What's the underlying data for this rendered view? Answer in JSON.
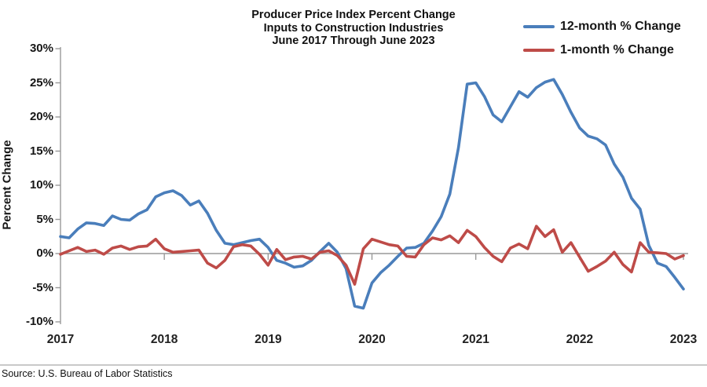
{
  "title": {
    "line1": "Producer Price Index Percent Change",
    "line2": "Inputs to Construction Industries",
    "line3": "June 2017 Through June 2023"
  },
  "source": "Source: U.S. Bureau of Labor Statistics",
  "chart_data": {
    "type": "line",
    "title": "Producer Price Index Percent Change Inputs to Construction Industries June 2017 Through June 2023",
    "xlabel": "",
    "ylabel": "Percent Change",
    "x_unit": "month",
    "x_start": "June 2017",
    "x_end": "June 2023",
    "n_points": 73,
    "ylim": [
      -10,
      30
    ],
    "grid": "zero-line-only",
    "legend_position": "top-right",
    "axis_color": "#999999",
    "y_ticks": [
      {
        "label": "30%",
        "value": 30
      },
      {
        "label": "25%",
        "value": 25
      },
      {
        "label": "20%",
        "value": 20
      },
      {
        "label": "15%",
        "value": 15
      },
      {
        "label": "10%",
        "value": 10
      },
      {
        "label": "5%",
        "value": 5
      },
      {
        "label": "0%",
        "value": 0
      },
      {
        "label": "-5%",
        "value": -5
      },
      {
        "label": "-10%",
        "value": -10
      }
    ],
    "x_ticks": [
      {
        "label": "2017",
        "month_index": 0
      },
      {
        "label": "2018",
        "month_index": 12
      },
      {
        "label": "2019",
        "month_index": 24
      },
      {
        "label": "2020",
        "month_index": 36
      },
      {
        "label": "2021",
        "month_index": 48
      },
      {
        "label": "2022",
        "month_index": 60
      },
      {
        "label": "2023",
        "month_index": 72
      }
    ],
    "series": [
      {
        "name": "12-month % Change",
        "color": "#4A7EBB",
        "values": [
          2.5,
          2.3,
          3.6,
          4.5,
          4.4,
          4.1,
          5.5,
          5.0,
          4.9,
          5.8,
          6.4,
          8.3,
          8.9,
          9.2,
          8.5,
          7.1,
          7.7,
          5.9,
          3.4,
          1.5,
          1.3,
          1.6,
          1.9,
          2.1,
          0.9,
          -1.0,
          -1.4,
          -2.0,
          -1.8,
          -1.0,
          0.3,
          1.5,
          0.2,
          -2.2,
          -7.7,
          -8.0,
          -4.3,
          -2.8,
          -1.7,
          -0.4,
          0.8,
          0.9,
          1.5,
          3.3,
          5.4,
          8.7,
          15.5,
          24.8,
          25.0,
          23.0,
          20.3,
          19.3,
          21.5,
          23.7,
          22.9,
          24.3,
          25.1,
          25.5,
          23.3,
          20.7,
          18.4,
          17.2,
          16.8,
          15.9,
          13.1,
          11.2,
          8.1,
          6.5,
          1.2,
          -1.4,
          -1.9,
          -3.5,
          -5.2
        ]
      },
      {
        "name": "1-month % Change",
        "color": "#BE4B48",
        "values": [
          -0.1,
          0.4,
          0.9,
          0.3,
          0.5,
          -0.1,
          0.8,
          1.1,
          0.6,
          1.0,
          1.1,
          2.1,
          0.7,
          0.2,
          0.3,
          0.4,
          0.5,
          -1.4,
          -2.1,
          -1.0,
          1.0,
          1.3,
          1.1,
          -0.1,
          -1.7,
          0.6,
          -0.9,
          -0.5,
          -0.4,
          -0.8,
          0.2,
          0.4,
          -0.3,
          -1.7,
          -4.5,
          0.7,
          2.1,
          1.7,
          1.3,
          1.1,
          -0.4,
          -0.5,
          1.3,
          2.3,
          2.0,
          2.6,
          1.6,
          3.4,
          2.5,
          0.9,
          -0.4,
          -1.2,
          0.8,
          1.4,
          0.7,
          4.0,
          2.5,
          3.5,
          0.2,
          1.6,
          -0.5,
          -2.6,
          -1.9,
          -1.1,
          0.2,
          -1.6,
          -2.7,
          1.6,
          0.2,
          0.1,
          0.0,
          -0.8,
          -0.3
        ]
      }
    ]
  }
}
